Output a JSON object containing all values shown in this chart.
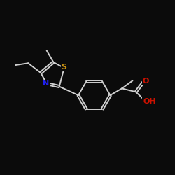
{
  "bg_color": "#0b0b0b",
  "bond_color": "#d0d0d0",
  "bond_width": 1.4,
  "dbo": 0.055,
  "S_color": "#c89010",
  "N_color": "#2020ee",
  "O_color": "#cc1100",
  "font_size": 7.5,
  "xlim": [
    0.5,
    9.5
  ],
  "ylim": [
    2.5,
    8.5
  ]
}
